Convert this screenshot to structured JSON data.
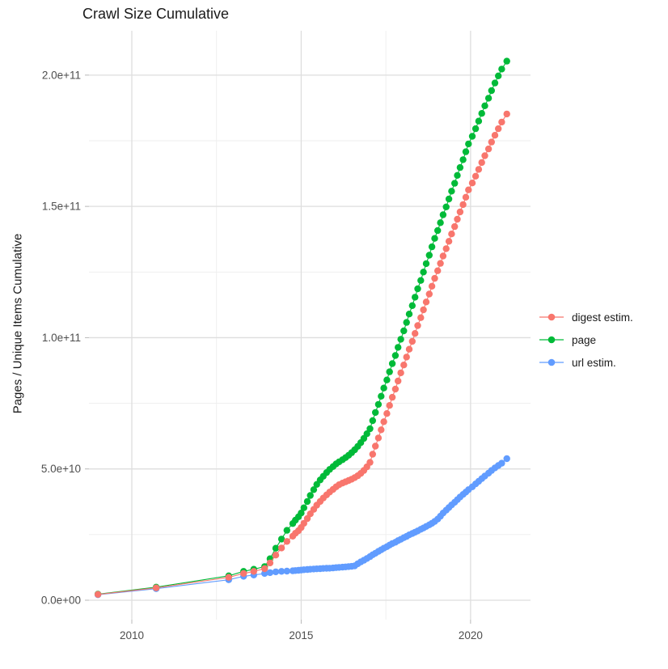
{
  "title": "Crawl Size Cumulative",
  "axes": {
    "y_label": "Pages / Unique Items Cumulative",
    "x_tick_labels": [
      "2010",
      "2015",
      "2020"
    ],
    "y_tick_labels": [
      "0.0e+00",
      "5.0e+10",
      "1.0e+11",
      "1.5e+11",
      "2.0e+11"
    ]
  },
  "legend": {
    "items": [
      {
        "label": "digest estim.",
        "color": "#F8766D"
      },
      {
        "label": "page",
        "color": "#00BA38"
      },
      {
        "label": "url estim.",
        "color": "#619CFF"
      }
    ]
  },
  "colors": {
    "background": "#FFFFFF",
    "grid_major": "#DEDEDE",
    "grid_minor": "#EEEEEE",
    "tick_mark": "#B8B8B8",
    "tick_text": "#4D4D4D"
  },
  "chart_data": {
    "type": "scatter",
    "title": "Crawl Size Cumulative",
    "xlabel": "",
    "ylabel": "Pages / Unique Items Cumulative",
    "values_unit": "billions (1e9) of pages / unique items",
    "xlim": [
      2008.735,
      2021.77
    ],
    "ylim_e9": [
      -7.4,
      216.9
    ],
    "x_major": [
      2010,
      2015,
      2020
    ],
    "x_minor": [
      2012.5,
      2017.5
    ],
    "y_major_e9": [
      0,
      50,
      100,
      150,
      200
    ],
    "y_minor_e9": [
      25,
      75,
      125,
      175
    ],
    "x_tick_labels": [
      "2010",
      "2015",
      "2020"
    ],
    "y_tick_labels": [
      "0.0e+00",
      "5.0e+10",
      "1.0e+11",
      "1.5e+11",
      "2.0e+11"
    ],
    "grid": true,
    "legend_position": "right",
    "series": [
      {
        "name": "digest estim.",
        "color": "#F8766D",
        "points": [
          [
            2009.0,
            2.2
          ],
          [
            2010.72,
            4.7
          ],
          [
            2012.86,
            8.7
          ],
          [
            2013.3,
            10.2
          ],
          [
            2013.6,
            11.0
          ],
          [
            2013.92,
            12.0
          ],
          [
            2014.08,
            14.2
          ],
          [
            2014.25,
            17.2
          ],
          [
            2014.42,
            19.9
          ],
          [
            2014.58,
            22.4
          ],
          [
            2014.75,
            24.4
          ],
          [
            2014.83,
            25.5
          ],
          [
            2014.92,
            26.5
          ],
          [
            2015.0,
            27.7
          ],
          [
            2015.08,
            29.3
          ],
          [
            2015.18,
            31.1
          ],
          [
            2015.27,
            32.9
          ],
          [
            2015.37,
            34.6
          ],
          [
            2015.46,
            36.2
          ],
          [
            2015.56,
            37.6
          ],
          [
            2015.65,
            38.9
          ],
          [
            2015.75,
            40.1
          ],
          [
            2015.84,
            41.2
          ],
          [
            2015.94,
            42.2
          ],
          [
            2016.03,
            43.2
          ],
          [
            2016.12,
            44.0
          ],
          [
            2016.22,
            44.6
          ],
          [
            2016.31,
            45.1
          ],
          [
            2016.4,
            45.6
          ],
          [
            2016.49,
            46.1
          ],
          [
            2016.58,
            46.7
          ],
          [
            2016.67,
            47.4
          ],
          [
            2016.76,
            48.3
          ],
          [
            2016.85,
            49.4
          ],
          [
            2016.94,
            50.8
          ],
          [
            2017.03,
            52.5
          ],
          [
            2017.11,
            55.6
          ],
          [
            2017.19,
            58.7
          ],
          [
            2017.28,
            61.8
          ],
          [
            2017.36,
            64.9
          ],
          [
            2017.44,
            68.0
          ],
          [
            2017.53,
            71.1
          ],
          [
            2017.61,
            74.2
          ],
          [
            2017.69,
            77.3
          ],
          [
            2017.78,
            80.4
          ],
          [
            2017.86,
            83.5
          ],
          [
            2017.94,
            86.6
          ],
          [
            2018.03,
            89.6
          ],
          [
            2018.11,
            92.6
          ],
          [
            2018.19,
            95.6
          ],
          [
            2018.28,
            98.6
          ],
          [
            2018.36,
            101.6
          ],
          [
            2018.44,
            104.6
          ],
          [
            2018.53,
            107.6
          ],
          [
            2018.61,
            110.6
          ],
          [
            2018.69,
            113.6
          ],
          [
            2018.78,
            116.6
          ],
          [
            2018.86,
            119.6
          ],
          [
            2018.94,
            122.6
          ],
          [
            2019.03,
            125.5
          ],
          [
            2019.11,
            128.3
          ],
          [
            2019.19,
            131.1
          ],
          [
            2019.28,
            133.9
          ],
          [
            2019.36,
            136.7
          ],
          [
            2019.44,
            139.5
          ],
          [
            2019.53,
            142.3
          ],
          [
            2019.61,
            145.1
          ],
          [
            2019.69,
            147.9
          ],
          [
            2019.78,
            150.7
          ],
          [
            2019.86,
            153.5
          ],
          [
            2019.94,
            156.3
          ],
          [
            2020.05,
            158.9
          ],
          [
            2020.15,
            161.5
          ],
          [
            2020.24,
            164.1
          ],
          [
            2020.33,
            166.7
          ],
          [
            2020.42,
            169.3
          ],
          [
            2020.53,
            171.9
          ],
          [
            2020.62,
            174.5
          ],
          [
            2020.72,
            177.1
          ],
          [
            2020.82,
            179.6
          ],
          [
            2020.92,
            182.1
          ],
          [
            2021.07,
            185.2
          ]
        ]
      },
      {
        "name": "page",
        "color": "#00BA38",
        "points": [
          [
            2009.0,
            2.3
          ],
          [
            2010.72,
            5.0
          ],
          [
            2012.86,
            9.3
          ],
          [
            2013.3,
            11.0
          ],
          [
            2013.6,
            11.8
          ],
          [
            2013.92,
            12.8
          ],
          [
            2014.08,
            15.8
          ],
          [
            2014.25,
            19.8
          ],
          [
            2014.42,
            23.3
          ],
          [
            2014.58,
            26.6
          ],
          [
            2014.75,
            29.2
          ],
          [
            2014.83,
            30.5
          ],
          [
            2014.92,
            31.8
          ],
          [
            2015.0,
            33.2
          ],
          [
            2015.08,
            35.2
          ],
          [
            2015.18,
            37.6
          ],
          [
            2015.27,
            39.9
          ],
          [
            2015.37,
            42.1
          ],
          [
            2015.46,
            44.1
          ],
          [
            2015.56,
            45.8
          ],
          [
            2015.65,
            47.2
          ],
          [
            2015.75,
            48.6
          ],
          [
            2015.84,
            49.8
          ],
          [
            2015.94,
            50.9
          ],
          [
            2016.03,
            51.9
          ],
          [
            2016.12,
            52.7
          ],
          [
            2016.22,
            53.5
          ],
          [
            2016.31,
            54.3
          ],
          [
            2016.4,
            55.2
          ],
          [
            2016.49,
            56.2
          ],
          [
            2016.58,
            57.3
          ],
          [
            2016.67,
            58.6
          ],
          [
            2016.76,
            60.0
          ],
          [
            2016.85,
            61.6
          ],
          [
            2016.94,
            63.4
          ],
          [
            2017.03,
            65.3
          ],
          [
            2017.11,
            68.4
          ],
          [
            2017.19,
            71.5
          ],
          [
            2017.28,
            74.6
          ],
          [
            2017.36,
            77.7
          ],
          [
            2017.44,
            80.8
          ],
          [
            2017.53,
            83.9
          ],
          [
            2017.61,
            87.0
          ],
          [
            2017.69,
            90.1
          ],
          [
            2017.78,
            93.2
          ],
          [
            2017.86,
            96.3
          ],
          [
            2017.94,
            99.4
          ],
          [
            2018.03,
            102.6
          ],
          [
            2018.11,
            105.8
          ],
          [
            2018.19,
            109.0
          ],
          [
            2018.28,
            112.2
          ],
          [
            2018.36,
            115.4
          ],
          [
            2018.44,
            118.6
          ],
          [
            2018.53,
            121.8
          ],
          [
            2018.61,
            125.0
          ],
          [
            2018.69,
            128.2
          ],
          [
            2018.78,
            131.4
          ],
          [
            2018.86,
            134.6
          ],
          [
            2018.94,
            137.8
          ],
          [
            2019.03,
            140.8
          ],
          [
            2019.11,
            143.8
          ],
          [
            2019.19,
            146.8
          ],
          [
            2019.28,
            149.8
          ],
          [
            2019.36,
            152.8
          ],
          [
            2019.44,
            155.8
          ],
          [
            2019.53,
            158.8
          ],
          [
            2019.61,
            161.8
          ],
          [
            2019.69,
            164.8
          ],
          [
            2019.78,
            167.8
          ],
          [
            2019.86,
            170.8
          ],
          [
            2019.94,
            173.8
          ],
          [
            2020.05,
            176.7
          ],
          [
            2020.15,
            179.6
          ],
          [
            2020.24,
            182.5
          ],
          [
            2020.33,
            185.4
          ],
          [
            2020.42,
            188.3
          ],
          [
            2020.53,
            191.2
          ],
          [
            2020.62,
            194.1
          ],
          [
            2020.72,
            197.0
          ],
          [
            2020.82,
            199.7
          ],
          [
            2020.92,
            202.3
          ],
          [
            2021.07,
            205.3
          ]
        ]
      },
      {
        "name": "url estim.",
        "color": "#619CFF",
        "points": [
          [
            2009.0,
            2.1
          ],
          [
            2010.72,
            4.4
          ],
          [
            2012.86,
            7.8
          ],
          [
            2013.3,
            9.1
          ],
          [
            2013.6,
            9.6
          ],
          [
            2013.92,
            10.2
          ],
          [
            2014.08,
            10.5
          ],
          [
            2014.25,
            10.8
          ],
          [
            2014.42,
            11.0
          ],
          [
            2014.58,
            11.1
          ],
          [
            2014.75,
            11.2
          ],
          [
            2014.83,
            11.3
          ],
          [
            2014.92,
            11.4
          ],
          [
            2015.0,
            11.5
          ],
          [
            2015.08,
            11.6
          ],
          [
            2015.18,
            11.7
          ],
          [
            2015.27,
            11.8
          ],
          [
            2015.37,
            11.9
          ],
          [
            2015.46,
            11.95
          ],
          [
            2015.56,
            12.0
          ],
          [
            2015.65,
            12.1
          ],
          [
            2015.75,
            12.15
          ],
          [
            2015.84,
            12.2
          ],
          [
            2015.94,
            12.3
          ],
          [
            2016.03,
            12.4
          ],
          [
            2016.12,
            12.5
          ],
          [
            2016.22,
            12.6
          ],
          [
            2016.31,
            12.7
          ],
          [
            2016.4,
            12.8
          ],
          [
            2016.49,
            12.9
          ],
          [
            2016.58,
            13.1
          ],
          [
            2016.67,
            13.9
          ],
          [
            2016.76,
            14.6
          ],
          [
            2016.85,
            15.2
          ],
          [
            2016.94,
            15.9
          ],
          [
            2017.03,
            16.6
          ],
          [
            2017.11,
            17.3
          ],
          [
            2017.19,
            17.9
          ],
          [
            2017.28,
            18.6
          ],
          [
            2017.36,
            19.2
          ],
          [
            2017.44,
            19.8
          ],
          [
            2017.53,
            20.4
          ],
          [
            2017.61,
            21.0
          ],
          [
            2017.69,
            21.6
          ],
          [
            2017.78,
            22.1
          ],
          [
            2017.86,
            22.7
          ],
          [
            2017.94,
            23.2
          ],
          [
            2018.03,
            23.8
          ],
          [
            2018.11,
            24.3
          ],
          [
            2018.19,
            24.9
          ],
          [
            2018.28,
            25.4
          ],
          [
            2018.36,
            25.9
          ],
          [
            2018.44,
            26.4
          ],
          [
            2018.53,
            27.0
          ],
          [
            2018.61,
            27.5
          ],
          [
            2018.69,
            28.1
          ],
          [
            2018.78,
            28.7
          ],
          [
            2018.86,
            29.3
          ],
          [
            2018.94,
            30.0
          ],
          [
            2019.03,
            30.9
          ],
          [
            2019.11,
            32.0
          ],
          [
            2019.19,
            33.2
          ],
          [
            2019.28,
            34.3
          ],
          [
            2019.36,
            35.3
          ],
          [
            2019.44,
            36.3
          ],
          [
            2019.53,
            37.3
          ],
          [
            2019.61,
            38.3
          ],
          [
            2019.69,
            39.3
          ],
          [
            2019.78,
            40.3
          ],
          [
            2019.86,
            41.2
          ],
          [
            2019.94,
            42.1
          ],
          [
            2020.05,
            43.2
          ],
          [
            2020.15,
            44.3
          ],
          [
            2020.24,
            45.3
          ],
          [
            2020.33,
            46.3
          ],
          [
            2020.42,
            47.3
          ],
          [
            2020.53,
            48.4
          ],
          [
            2020.62,
            49.4
          ],
          [
            2020.72,
            50.4
          ],
          [
            2020.82,
            51.3
          ],
          [
            2020.92,
            52.2
          ],
          [
            2021.07,
            53.9
          ]
        ]
      }
    ]
  }
}
